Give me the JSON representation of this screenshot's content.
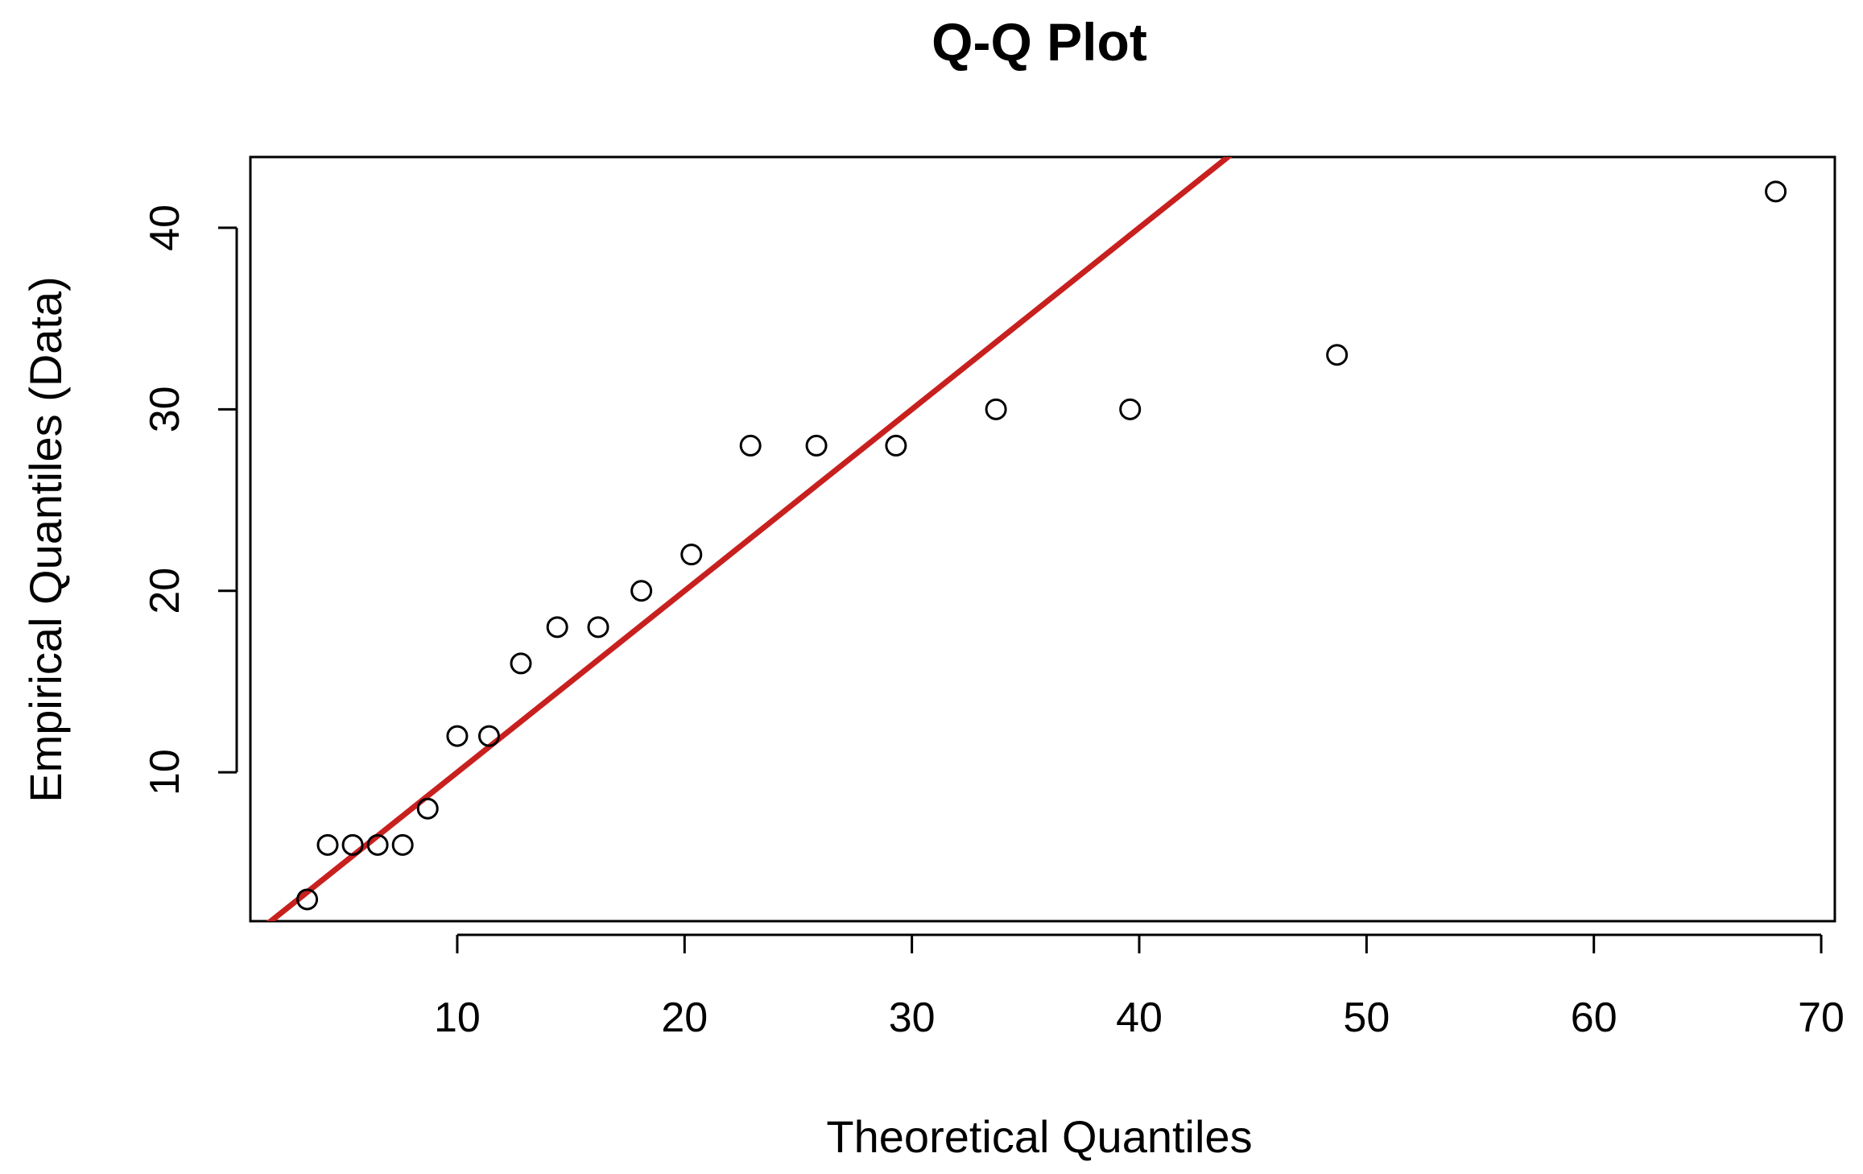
{
  "chart_data": {
    "type": "scatter",
    "title": "Q-Q Plot",
    "xlabel": "Theoretical Quantiles",
    "ylabel": "Empirical Quantiles (Data)",
    "xlim": [
      0.9,
      70.6
    ],
    "ylim": [
      1.8,
      43.9
    ],
    "xticks": [
      10,
      20,
      30,
      40,
      50,
      60,
      70
    ],
    "yticks": [
      10,
      20,
      30,
      40
    ],
    "grid": false,
    "point_style": "open-circle",
    "point_color": "#000000",
    "series": [
      {
        "x": [
          3.4,
          4.3,
          5.4,
          6.5,
          7.6,
          8.7,
          10.0,
          11.4,
          12.8,
          14.4,
          16.2,
          18.1,
          20.3,
          22.9,
          25.8,
          29.3,
          33.7,
          39.6,
          48.7,
          68.0
        ],
        "y": [
          3,
          6,
          6,
          6,
          6,
          8,
          12,
          12,
          16,
          18,
          18,
          20,
          22,
          28,
          28,
          28,
          30,
          30,
          33,
          42
        ]
      }
    ],
    "reference_line": {
      "intercept": 0,
      "slope": 1,
      "color": "#c8201e"
    }
  }
}
